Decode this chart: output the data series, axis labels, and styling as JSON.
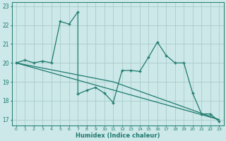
{
  "xlabel": "Humidex (Indice chaleur)",
  "bg_color": "#cce8e8",
  "grid_color": "#aacccc",
  "line_color": "#1e7a6e",
  "xlim": [
    -0.5,
    23.5
  ],
  "ylim": [
    16.7,
    23.2
  ],
  "yticks": [
    17,
    18,
    19,
    20,
    21,
    22,
    23
  ],
  "xticks": [
    0,
    1,
    2,
    3,
    4,
    5,
    6,
    7,
    8,
    9,
    10,
    11,
    12,
    13,
    14,
    15,
    16,
    17,
    18,
    19,
    20,
    21,
    22,
    23
  ],
  "series1_x": [
    0,
    1,
    2,
    3,
    4,
    5,
    6,
    7,
    7,
    8,
    9,
    10,
    11,
    12,
    13,
    14,
    15,
    16,
    17,
    18,
    19,
    20,
    21,
    22,
    23
  ],
  "series1_y": [
    20.0,
    20.15,
    20.0,
    20.1,
    20.0,
    22.2,
    22.05,
    22.7,
    18.35,
    18.55,
    18.7,
    18.4,
    17.9,
    19.6,
    19.6,
    19.55,
    20.3,
    21.1,
    20.4,
    20.0,
    20.0,
    18.4,
    17.3,
    17.3,
    16.9
  ],
  "series2_x": [
    0,
    23
  ],
  "series2_y": [
    20.0,
    17.0
  ],
  "series3_x": [
    0,
    11,
    23
  ],
  "series3_y": [
    20.0,
    19.0,
    17.0
  ],
  "marker_x": [
    0,
    1,
    2,
    3,
    4,
    5,
    6,
    7,
    8,
    9,
    10,
    11,
    12,
    13,
    14,
    15,
    16,
    17,
    18,
    19,
    20,
    21,
    22,
    23
  ],
  "marker_y": [
    20.0,
    20.15,
    20.0,
    20.1,
    20.0,
    22.2,
    22.05,
    22.7,
    18.55,
    18.7,
    18.4,
    17.9,
    19.6,
    19.6,
    19.55,
    20.3,
    21.1,
    20.4,
    20.0,
    20.0,
    18.4,
    17.3,
    17.3,
    16.9
  ]
}
